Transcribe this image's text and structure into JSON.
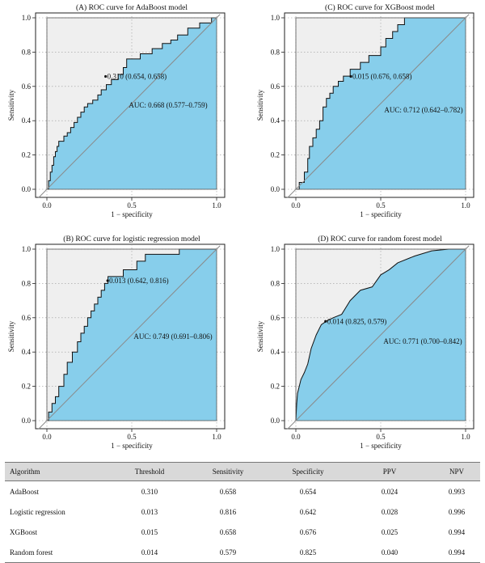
{
  "chart_data": [
    {
      "type": "area",
      "title": "(A) ROC curve for AdaBoost model",
      "xlabel": "1 − specificity",
      "ylabel": "Sensitivity",
      "xlim": [
        0,
        1
      ],
      "ylim": [
        0,
        1
      ],
      "x_ticks": [
        "0.0",
        "0.5",
        "1.0"
      ],
      "y_ticks": [
        "0.0",
        "0.2",
        "0.4",
        "0.6",
        "0.8",
        "1.0"
      ],
      "grid": "dotted",
      "fill_color": "#87ceeb",
      "background_color": "#efefef",
      "threshold_label": "0.310 (0.654, 0.658)",
      "threshold_point": [
        0.346,
        0.658
      ],
      "auc_label": "AUC: 0.668 (0.577–0.759)",
      "fpr": [
        0,
        0.01,
        0.01,
        0.02,
        0.02,
        0.03,
        0.03,
        0.04,
        0.04,
        0.05,
        0.05,
        0.06,
        0.06,
        0.07,
        0.07,
        0.1,
        0.1,
        0.12,
        0.12,
        0.14,
        0.14,
        0.16,
        0.16,
        0.18,
        0.18,
        0.2,
        0.2,
        0.22,
        0.22,
        0.24,
        0.24,
        0.27,
        0.27,
        0.3,
        0.3,
        0.32,
        0.32,
        0.35,
        0.35,
        0.38,
        0.38,
        0.42,
        0.42,
        0.45,
        0.45,
        0.47,
        0.47,
        0.55,
        0.55,
        0.62,
        0.62,
        0.68,
        0.68,
        0.73,
        0.73,
        0.77,
        0.77,
        0.83,
        0.83,
        0.9,
        0.9,
        0.97,
        0.97,
        1.0
      ],
      "tpr": [
        0,
        0,
        0.05,
        0.05,
        0.1,
        0.1,
        0.14,
        0.14,
        0.19,
        0.19,
        0.22,
        0.22,
        0.25,
        0.25,
        0.28,
        0.28,
        0.31,
        0.31,
        0.33,
        0.33,
        0.36,
        0.36,
        0.39,
        0.39,
        0.42,
        0.42,
        0.45,
        0.45,
        0.48,
        0.48,
        0.5,
        0.5,
        0.52,
        0.52,
        0.55,
        0.55,
        0.58,
        0.58,
        0.61,
        0.61,
        0.64,
        0.64,
        0.67,
        0.67,
        0.71,
        0.71,
        0.76,
        0.76,
        0.79,
        0.79,
        0.82,
        0.82,
        0.85,
        0.85,
        0.87,
        0.87,
        0.9,
        0.9,
        0.94,
        0.94,
        0.97,
        0.97,
        1.0,
        1.0
      ]
    },
    {
      "type": "area",
      "title": "(C) ROC curve for XGBoost model",
      "xlabel": "1 − specificity",
      "ylabel": "Sensitivity",
      "xlim": [
        0,
        1
      ],
      "ylim": [
        0,
        1
      ],
      "x_ticks": [
        "0.0",
        "0.5",
        "1.0"
      ],
      "y_ticks": [
        "0.0",
        "0.2",
        "0.4",
        "0.6",
        "0.8",
        "1.0"
      ],
      "grid": "dotted",
      "fill_color": "#87ceeb",
      "background_color": "#efefef",
      "threshold_label": "0.015 (0.676, 0.658)",
      "threshold_point": [
        0.324,
        0.658
      ],
      "auc_label": "AUC: 0.712 (0.642–0.782)",
      "fpr": [
        0,
        0.02,
        0.02,
        0.05,
        0.05,
        0.07,
        0.07,
        0.08,
        0.08,
        0.1,
        0.1,
        0.12,
        0.12,
        0.14,
        0.14,
        0.16,
        0.16,
        0.18,
        0.18,
        0.2,
        0.2,
        0.22,
        0.22,
        0.25,
        0.25,
        0.28,
        0.28,
        0.32,
        0.32,
        0.38,
        0.38,
        0.43,
        0.43,
        0.5,
        0.5,
        0.53,
        0.53,
        0.57,
        0.57,
        0.6,
        0.6,
        0.64,
        0.64,
        0.72,
        0.72,
        1.0
      ],
      "tpr": [
        0,
        0,
        0.04,
        0.04,
        0.1,
        0.1,
        0.18,
        0.18,
        0.25,
        0.25,
        0.3,
        0.3,
        0.35,
        0.35,
        0.4,
        0.4,
        0.48,
        0.48,
        0.53,
        0.53,
        0.56,
        0.56,
        0.6,
        0.6,
        0.63,
        0.63,
        0.66,
        0.66,
        0.7,
        0.7,
        0.74,
        0.74,
        0.78,
        0.78,
        0.83,
        0.83,
        0.88,
        0.88,
        0.92,
        0.92,
        0.96,
        0.96,
        1.0,
        1.0,
        1.0,
        1.0
      ]
    },
    {
      "type": "area",
      "title": "(B) ROC curve for logistic regression model",
      "xlabel": "1 − specificity",
      "ylabel": "Sensitivity",
      "xlim": [
        0,
        1
      ],
      "ylim": [
        0,
        1
      ],
      "x_ticks": [
        "0.0",
        "0.5",
        "1.0"
      ],
      "y_ticks": [
        "0.0",
        "0.2",
        "0.4",
        "0.6",
        "0.8",
        "1.0"
      ],
      "grid": "dotted",
      "fill_color": "#87ceeb",
      "background_color": "#efefef",
      "threshold_label": "0.013 (0.642, 0.816)",
      "threshold_point": [
        0.358,
        0.816
      ],
      "auc_label": "AUC: 0.749 (0.691–0.806)",
      "fpr": [
        0,
        0.01,
        0.01,
        0.03,
        0.03,
        0.05,
        0.05,
        0.07,
        0.07,
        0.1,
        0.1,
        0.12,
        0.12,
        0.15,
        0.15,
        0.18,
        0.18,
        0.2,
        0.2,
        0.22,
        0.22,
        0.24,
        0.24,
        0.26,
        0.26,
        0.28,
        0.28,
        0.3,
        0.3,
        0.32,
        0.32,
        0.34,
        0.34,
        0.36,
        0.36,
        0.45,
        0.45,
        0.53,
        0.53,
        0.58,
        0.58,
        0.78,
        0.78,
        1.0
      ],
      "tpr": [
        0,
        0,
        0.05,
        0.05,
        0.1,
        0.1,
        0.14,
        0.14,
        0.2,
        0.2,
        0.27,
        0.27,
        0.34,
        0.34,
        0.4,
        0.4,
        0.46,
        0.46,
        0.51,
        0.51,
        0.55,
        0.55,
        0.6,
        0.6,
        0.64,
        0.64,
        0.68,
        0.68,
        0.72,
        0.72,
        0.76,
        0.76,
        0.8,
        0.8,
        0.84,
        0.84,
        0.88,
        0.88,
        0.93,
        0.93,
        0.97,
        0.97,
        1.0,
        1.0
      ]
    },
    {
      "type": "area",
      "title": "(D) ROC curve for random forest model",
      "xlabel": "1 − specificity",
      "ylabel": "Sensitivity",
      "xlim": [
        0,
        1
      ],
      "ylim": [
        0,
        1
      ],
      "x_ticks": [
        "0.0",
        "0.5",
        "1.0"
      ],
      "y_ticks": [
        "0.0",
        "0.2",
        "0.4",
        "0.6",
        "0.8",
        "1.0"
      ],
      "grid": "dotted",
      "fill_color": "#87ceeb",
      "background_color": "#efefef",
      "threshold_label": "0.014 (0.825, 0.579)",
      "threshold_point": [
        0.175,
        0.579
      ],
      "auc_label": "AUC: 0.771 (0.700–0.842)",
      "fpr": [
        0,
        0.005,
        0.01,
        0.02,
        0.03,
        0.05,
        0.07,
        0.09,
        0.12,
        0.15,
        0.18,
        0.22,
        0.27,
        0.32,
        0.38,
        0.45,
        0.5,
        0.55,
        0.6,
        0.7,
        0.8,
        0.9,
        1.0
      ],
      "tpr": [
        0,
        0.1,
        0.16,
        0.2,
        0.24,
        0.28,
        0.33,
        0.42,
        0.5,
        0.56,
        0.58,
        0.6,
        0.62,
        0.7,
        0.76,
        0.78,
        0.85,
        0.88,
        0.92,
        0.96,
        0.99,
        1.0,
        1.0
      ]
    }
  ],
  "table": {
    "headers": [
      "Algorithm",
      "Threshold",
      "Sensitivity",
      "Specificity",
      "PPV",
      "NPV"
    ],
    "rows": [
      [
        "AdaBoost",
        "0.310",
        "0.658",
        "0.654",
        "0.024",
        "0.993"
      ],
      [
        "Logistic regression",
        "0.013",
        "0.816",
        "0.642",
        "0.028",
        "0.996"
      ],
      [
        "XGBoost",
        "0.015",
        "0.658",
        "0.676",
        "0.025",
        "0.994"
      ],
      [
        "Random forest",
        "0.014",
        "0.579",
        "0.825",
        "0.040",
        "0.994"
      ]
    ]
  }
}
